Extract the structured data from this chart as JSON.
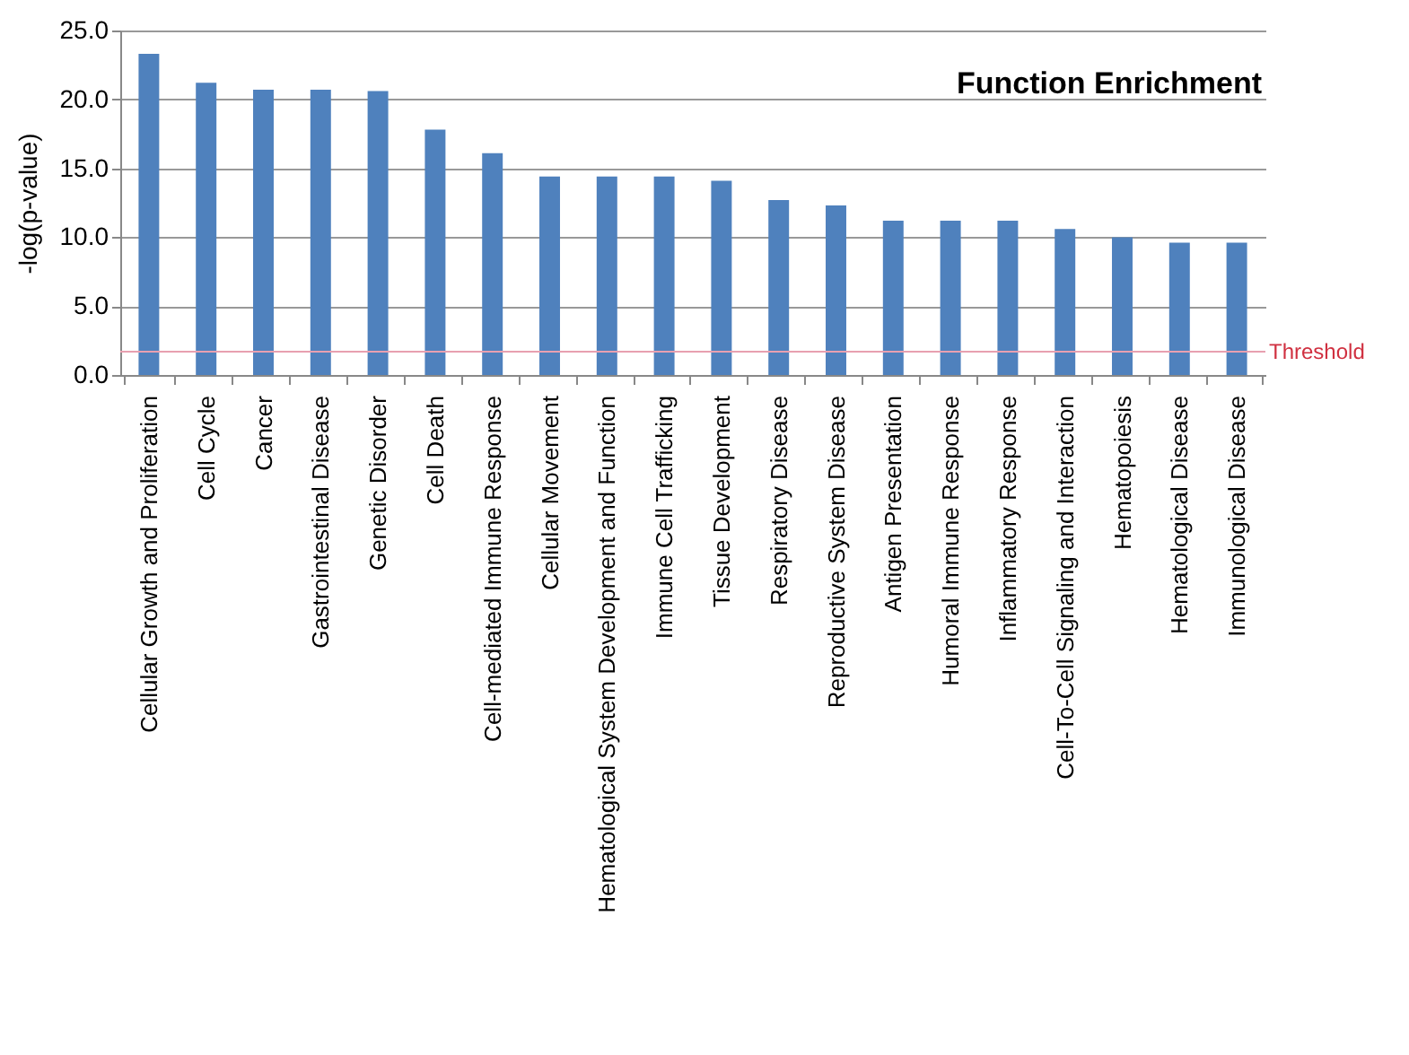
{
  "chart_data": {
    "type": "bar",
    "title": "Function Enrichment",
    "ylabel": "-log(p-value)",
    "categories": [
      "Cellular Growth and Proliferation",
      "Cell Cycle",
      "Cancer",
      "Gastrointestinal Disease",
      "Genetic Disorder",
      "Cell Death",
      "Cell-mediated Immune Response",
      "Cellular Movement",
      "Hematological System Development and Function",
      "Immune Cell Trafficking",
      "Tissue Development",
      "Respiratory Disease",
      "Reproductive System Disease",
      "Antigen Presentation",
      "Humoral Immune Response",
      "Inflammatory Response",
      "Cell-To-Cell Signaling and Interaction",
      "Hematopoiesis",
      "Hematological Disease",
      "Immunological Disease"
    ],
    "values": [
      23.3,
      21.2,
      20.7,
      20.7,
      20.6,
      17.8,
      16.1,
      14.4,
      14.4,
      14.4,
      14.1,
      12.7,
      12.3,
      11.2,
      11.2,
      11.2,
      10.6,
      10.0,
      9.6,
      9.6
    ],
    "color": "#4f81bd",
    "ylim": [
      0,
      25
    ],
    "yticks": [
      {
        "value": 0,
        "label": "0.0"
      },
      {
        "value": 5,
        "label": "5.0"
      },
      {
        "value": 10,
        "label": "10.0"
      },
      {
        "value": 15,
        "label": "15.0"
      },
      {
        "value": 20,
        "label": "20.0"
      },
      {
        "value": 25,
        "label": "25.0"
      }
    ],
    "grid": "y",
    "ref_lines": [
      {
        "axis": "y",
        "value": 1.7,
        "label": "Threshold",
        "color": "#e8a0b0"
      }
    ]
  }
}
